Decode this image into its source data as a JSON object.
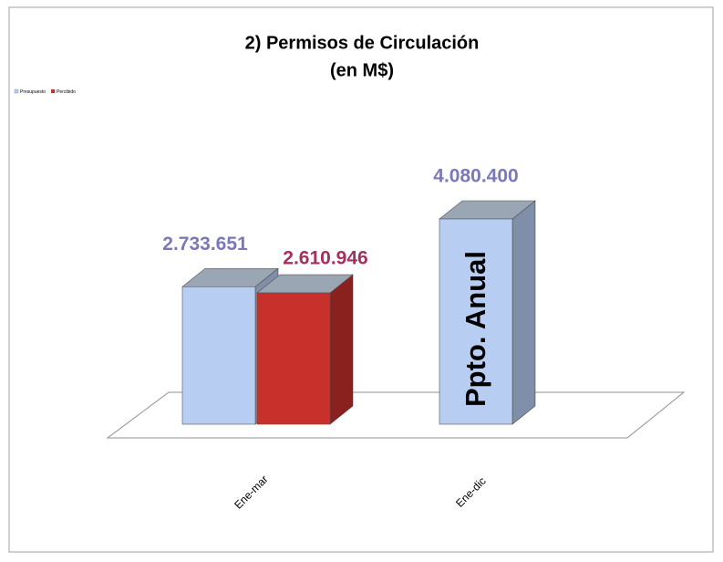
{
  "chart_data": {
    "type": "bar3d",
    "title": "2) Permisos de Circulación",
    "subtitle": "(en M$)",
    "categories": [
      "Ene-mar",
      "Ene-dic"
    ],
    "series": [
      {
        "name": "Presupuesto",
        "color": "#b7cdf2",
        "label_color": "#7a78b8",
        "values": [
          2733651,
          4080400
        ],
        "value_labels": [
          "2.733.651",
          "4.080.400"
        ]
      },
      {
        "name": "Percibido",
        "color": "#c8302c",
        "label_color": "#a3305e",
        "values": [
          2610946,
          null
        ],
        "value_labels": [
          "2.610.946",
          null
        ]
      }
    ],
    "annotation": "Ppto. Anual",
    "legend": "top-left"
  }
}
